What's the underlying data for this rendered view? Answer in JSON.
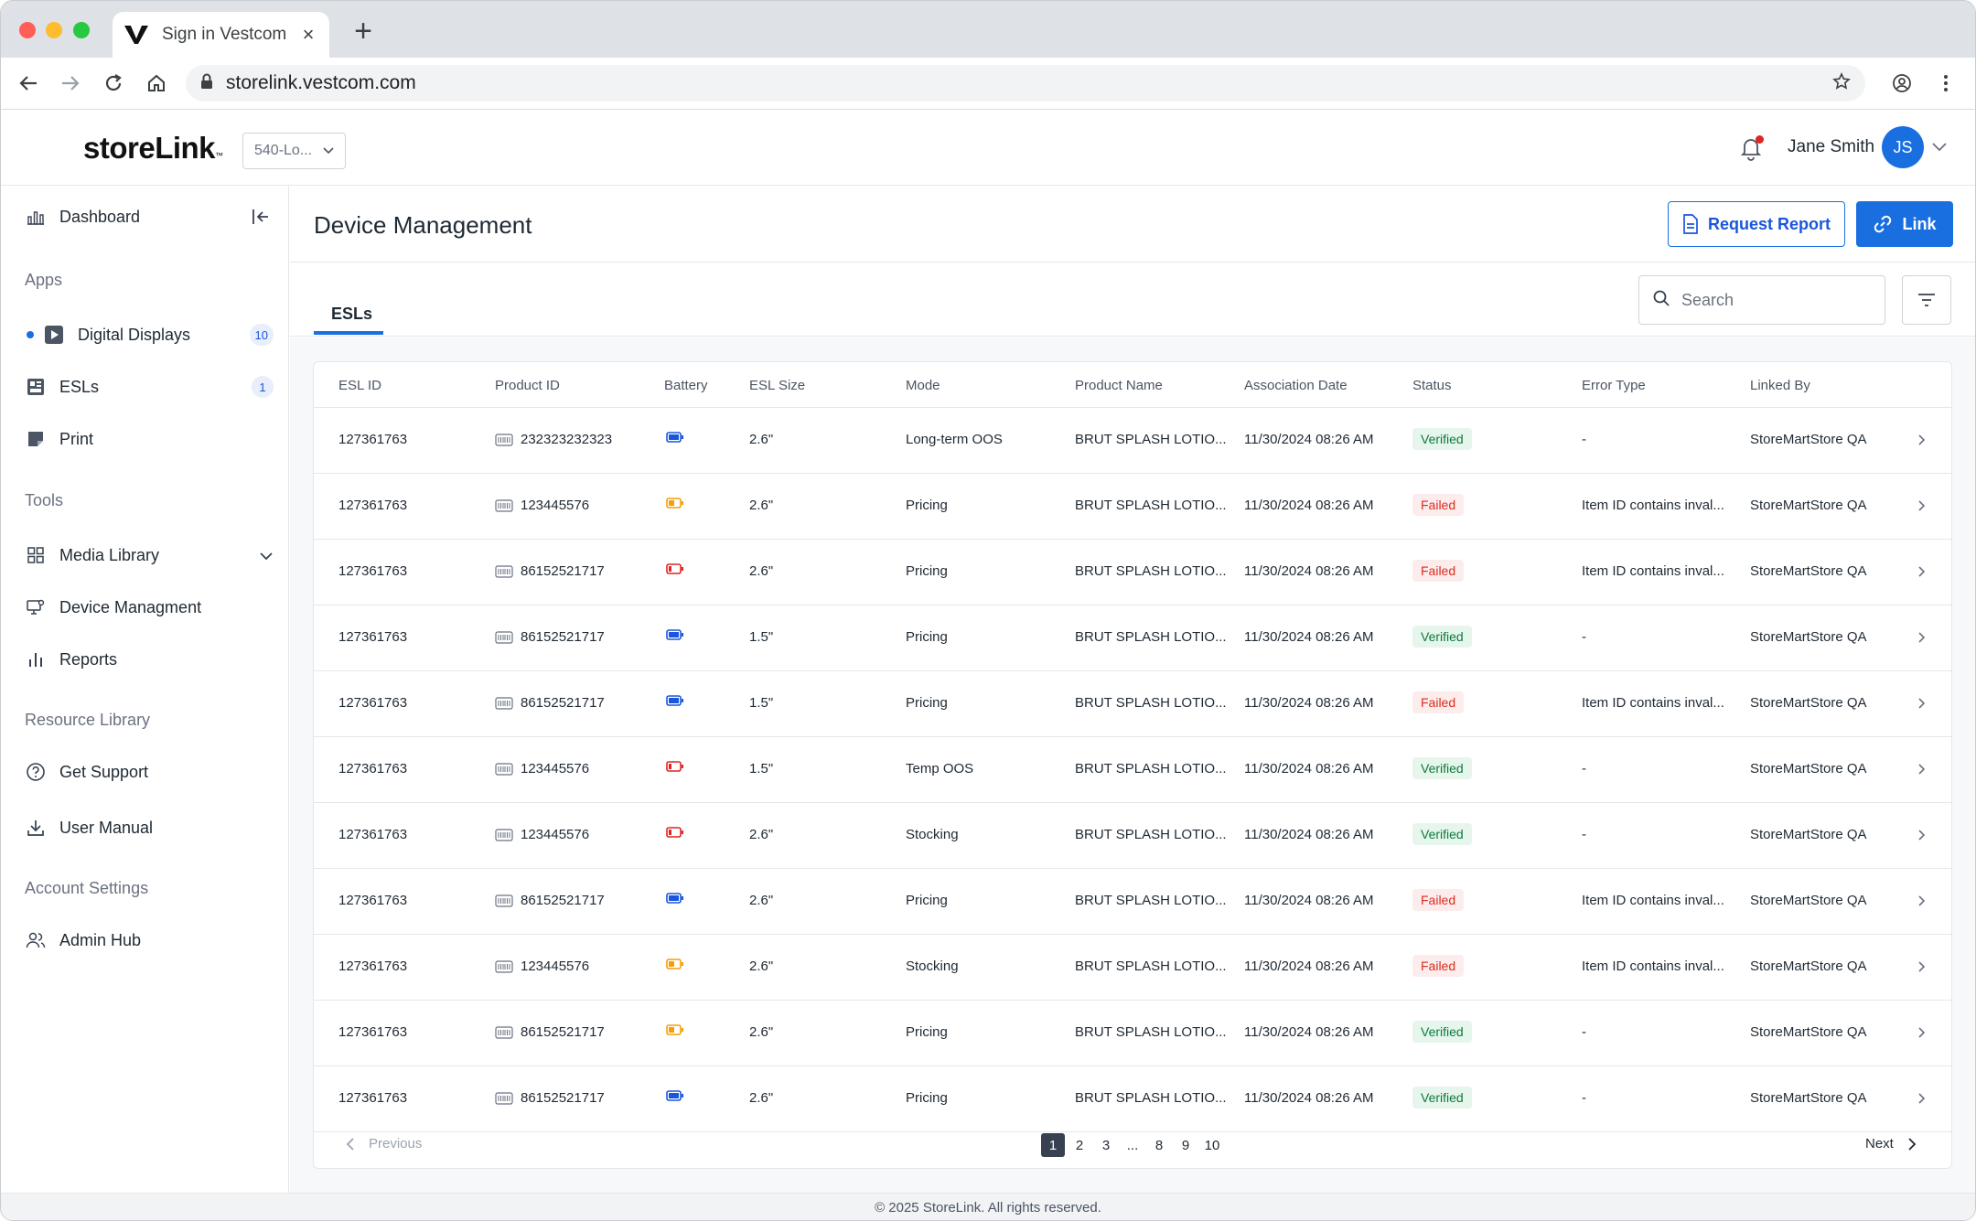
{
  "browser": {
    "tab_title": "Sign in Vestcom",
    "url": "storelink.vestcom.com"
  },
  "header": {
    "logo": "storeLink",
    "logo_tm": "™",
    "store_select": "540-Lo...",
    "user_name": "Jane Smith",
    "avatar_initials": "JS"
  },
  "sidebar": {
    "dashboard": "Dashboard",
    "apps_section": "Apps",
    "digital_displays": "Digital Displays",
    "digital_displays_count": "10",
    "esls": "ESLs",
    "esls_count": "1",
    "print": "Print",
    "tools_section": "Tools",
    "media_library": "Media Library",
    "device_management": "Device Managment",
    "reports": "Reports",
    "resource_section": "Resource Library",
    "get_support": "Get Support",
    "user_manual": "User Manual",
    "account_section": "Account Settings",
    "admin_hub": "Admin Hub"
  },
  "main": {
    "title": "Device Management",
    "request_report": "Request Report",
    "link": "Link",
    "tab_esls": "ESLs",
    "search_placeholder": "Search"
  },
  "table": {
    "columns": [
      "ESL ID",
      "Product ID",
      "Battery",
      "ESL Size",
      "Mode",
      "Product Name",
      "Association Date",
      "Status",
      "Error Type",
      "Linked By"
    ],
    "rows": [
      {
        "esl_id": "127361763",
        "product_id": "232323232323",
        "battery": "full",
        "size": "2.6\"",
        "mode": "Long-term OOS",
        "product_name": "BRUT SPLASH LOTIO...",
        "date": "11/30/2024 08:26 AM",
        "status": "Verified",
        "error": "-",
        "linked_by": "StoreMartStore QA"
      },
      {
        "esl_id": "127361763",
        "product_id": "123445576",
        "battery": "medium",
        "size": "2.6\"",
        "mode": "Pricing",
        "product_name": "BRUT SPLASH LOTIO...",
        "date": "11/30/2024 08:26 AM",
        "status": "Failed",
        "error": "Item ID contains inval...",
        "linked_by": "StoreMartStore QA"
      },
      {
        "esl_id": "127361763",
        "product_id": "86152521717",
        "battery": "low",
        "size": "2.6\"",
        "mode": "Pricing",
        "product_name": "BRUT SPLASH LOTIO...",
        "date": "11/30/2024 08:26 AM",
        "status": "Failed",
        "error": "Item ID contains inval...",
        "linked_by": "StoreMartStore QA"
      },
      {
        "esl_id": "127361763",
        "product_id": "86152521717",
        "battery": "full",
        "size": "1.5\"",
        "mode": "Pricing",
        "product_name": "BRUT SPLASH LOTIO...",
        "date": "11/30/2024 08:26 AM",
        "status": "Verified",
        "error": "-",
        "linked_by": "StoreMartStore QA"
      },
      {
        "esl_id": "127361763",
        "product_id": "86152521717",
        "battery": "full",
        "size": "1.5\"",
        "mode": "Pricing",
        "product_name": "BRUT SPLASH LOTIO...",
        "date": "11/30/2024 08:26 AM",
        "status": "Failed",
        "error": "Item ID contains inval...",
        "linked_by": "StoreMartStore QA"
      },
      {
        "esl_id": "127361763",
        "product_id": "123445576",
        "battery": "low",
        "size": "1.5\"",
        "mode": "Temp OOS",
        "product_name": "BRUT SPLASH LOTIO...",
        "date": "11/30/2024 08:26 AM",
        "status": "Verified",
        "error": "-",
        "linked_by": "StoreMartStore QA"
      },
      {
        "esl_id": "127361763",
        "product_id": "123445576",
        "battery": "low",
        "size": "2.6\"",
        "mode": "Stocking",
        "product_name": "BRUT SPLASH LOTIO...",
        "date": "11/30/2024 08:26 AM",
        "status": "Verified",
        "error": "-",
        "linked_by": "StoreMartStore QA"
      },
      {
        "esl_id": "127361763",
        "product_id": "86152521717",
        "battery": "full",
        "size": "2.6\"",
        "mode": "Pricing",
        "product_name": "BRUT SPLASH LOTIO...",
        "date": "11/30/2024 08:26 AM",
        "status": "Failed",
        "error": "Item ID contains inval...",
        "linked_by": "StoreMartStore QA"
      },
      {
        "esl_id": "127361763",
        "product_id": "123445576",
        "battery": "medium",
        "size": "2.6\"",
        "mode": "Stocking",
        "product_name": "BRUT SPLASH LOTIO...",
        "date": "11/30/2024 08:26 AM",
        "status": "Failed",
        "error": "Item ID contains inval...",
        "linked_by": "StoreMartStore QA"
      },
      {
        "esl_id": "127361763",
        "product_id": "86152521717",
        "battery": "medium",
        "size": "2.6\"",
        "mode": "Pricing",
        "product_name": "BRUT SPLASH LOTIO...",
        "date": "11/30/2024 08:26 AM",
        "status": "Verified",
        "error": "-",
        "linked_by": "StoreMartStore QA"
      },
      {
        "esl_id": "127361763",
        "product_id": "86152521717",
        "battery": "full",
        "size": "2.6\"",
        "mode": "Pricing",
        "product_name": "BRUT SPLASH LOTIO...",
        "date": "11/30/2024 08:26 AM",
        "status": "Verified",
        "error": "-",
        "linked_by": "StoreMartStore QA"
      }
    ]
  },
  "pagination": {
    "previous": "Previous",
    "next": "Next",
    "pages": [
      "1",
      "2",
      "3",
      "...",
      "8",
      "9",
      "10"
    ],
    "current": "1"
  },
  "footer": "© 2025 StoreLink. All rights reserved.",
  "colors": {
    "primary": "#1a6fe0",
    "verified_bg": "#e6f6ec",
    "verified_text": "#0b7a3b",
    "failed_bg": "#fdecec",
    "failed_text": "#d92d20",
    "battery_full": "#1a56db",
    "battery_medium": "#f59e0b",
    "battery_low": "#e02424"
  }
}
